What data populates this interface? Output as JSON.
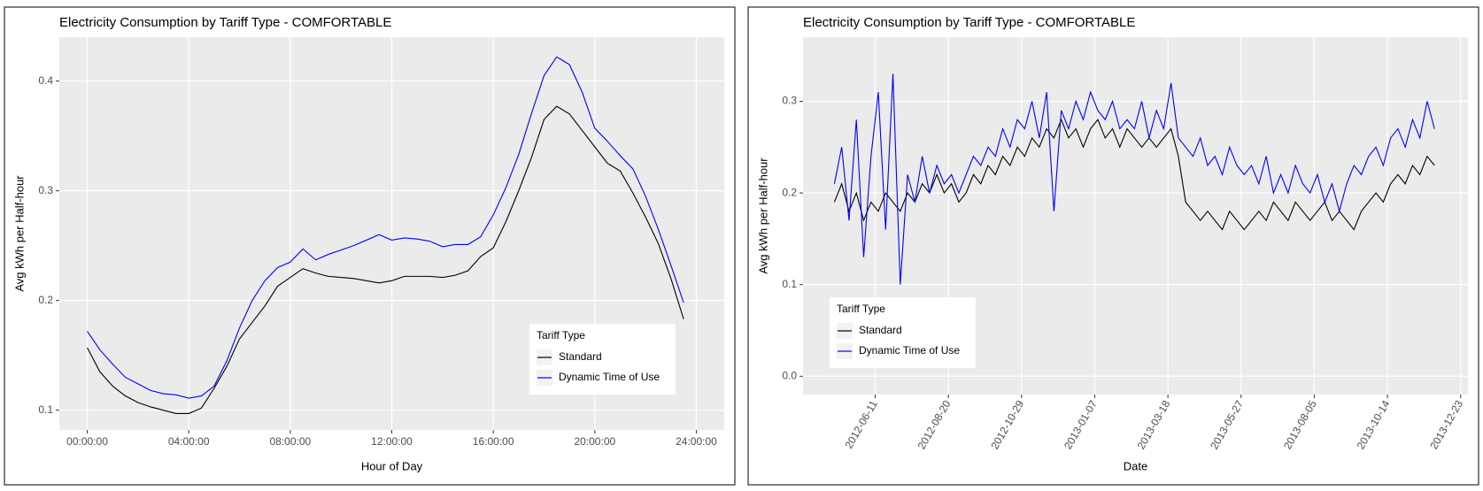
{
  "chart_data": [
    {
      "type": "line",
      "title": "Electricity Consumption by Tariff Type - COMFORTABLE",
      "x_label": "Hour of Day",
      "y_label": "Avg kWh per Half-hour",
      "x": [
        0,
        0.5,
        1,
        1.5,
        2,
        2.5,
        3,
        3.5,
        4,
        4.5,
        5,
        5.5,
        6,
        6.5,
        7,
        7.5,
        8,
        8.5,
        9,
        9.5,
        10,
        10.5,
        11,
        11.5,
        12,
        12.5,
        13,
        13.5,
        14,
        14.5,
        15,
        15.5,
        16,
        16.5,
        17,
        17.5,
        18,
        18.5,
        19,
        19.5,
        20,
        20.5,
        21,
        21.5,
        22,
        22.5,
        23,
        23.5
      ],
      "series": [
        {
          "name": "Standard",
          "color": "#000000",
          "values": [
            0.157,
            0.135,
            0.122,
            0.113,
            0.107,
            0.103,
            0.1,
            0.097,
            0.097,
            0.102,
            0.12,
            0.14,
            0.165,
            0.18,
            0.195,
            0.213,
            0.221,
            0.229,
            0.225,
            0.222,
            0.221,
            0.22,
            0.218,
            0.216,
            0.218,
            0.222,
            0.222,
            0.222,
            0.221,
            0.223,
            0.227,
            0.24,
            0.248,
            0.272,
            0.3,
            0.33,
            0.365,
            0.377,
            0.37,
            0.355,
            0.34,
            0.325,
            0.318,
            0.298,
            0.276,
            0.252,
            0.22,
            0.183
          ]
        },
        {
          "name": "Dynamic Time of Use",
          "color": "#0000ff",
          "values": [
            0.172,
            0.155,
            0.142,
            0.13,
            0.124,
            0.118,
            0.115,
            0.114,
            0.111,
            0.113,
            0.122,
            0.145,
            0.175,
            0.2,
            0.218,
            0.23,
            0.235,
            0.247,
            0.237,
            0.242,
            0.246,
            0.25,
            0.255,
            0.26,
            0.255,
            0.257,
            0.256,
            0.254,
            0.249,
            0.251,
            0.251,
            0.258,
            0.278,
            0.303,
            0.333,
            0.37,
            0.405,
            0.422,
            0.415,
            0.39,
            0.357,
            0.345,
            0.332,
            0.32,
            0.295,
            0.265,
            0.232,
            0.198
          ]
        }
      ],
      "xlim": [
        -1.1,
        25.1
      ],
      "xticks": [
        {
          "value": 0,
          "label": "00:00:00"
        },
        {
          "value": 4,
          "label": "04:00:00"
        },
        {
          "value": 8,
          "label": "08:00:00"
        },
        {
          "value": 12,
          "label": "12:00:00"
        },
        {
          "value": 16,
          "label": "16:00:00"
        },
        {
          "value": 20,
          "label": "20:00:00"
        },
        {
          "value": 24,
          "label": "24:00:00"
        }
      ],
      "ylim": [
        0.082,
        0.44
      ],
      "yticks": [
        0.1,
        0.2,
        0.3,
        0.4
      ],
      "grid": true,
      "legend_title": "Tariff Type",
      "legend_position": "bottom-right"
    },
    {
      "type": "line",
      "title": "Electricity Consumption by Tariff Type - COMFORTABLE",
      "x_label": "Date",
      "y_label": "Avg kWh per Half-hour",
      "x": [
        "2012-05-03",
        "2012-05-10",
        "2012-05-17",
        "2012-05-24",
        "2012-05-31",
        "2012-06-07",
        "2012-06-14",
        "2012-06-21",
        "2012-06-28",
        "2012-07-05",
        "2012-07-12",
        "2012-07-19",
        "2012-07-26",
        "2012-08-02",
        "2012-08-09",
        "2012-08-16",
        "2012-08-23",
        "2012-08-30",
        "2012-09-06",
        "2012-09-13",
        "2012-09-20",
        "2012-09-27",
        "2012-10-04",
        "2012-10-11",
        "2012-10-18",
        "2012-10-25",
        "2012-11-01",
        "2012-11-08",
        "2012-11-15",
        "2012-11-22",
        "2012-11-29",
        "2012-12-06",
        "2012-12-13",
        "2012-12-20",
        "2012-12-27",
        "2013-01-03",
        "2013-01-10",
        "2013-01-17",
        "2013-01-24",
        "2013-01-31",
        "2013-02-07",
        "2013-02-14",
        "2013-02-21",
        "2013-02-28",
        "2013-03-07",
        "2013-03-14",
        "2013-03-21",
        "2013-03-28",
        "2013-04-04",
        "2013-04-11",
        "2013-04-18",
        "2013-04-25",
        "2013-05-02",
        "2013-05-09",
        "2013-05-16",
        "2013-05-23",
        "2013-05-30",
        "2013-06-06",
        "2013-06-13",
        "2013-06-20",
        "2013-06-27",
        "2013-07-04",
        "2013-07-11",
        "2013-07-18",
        "2013-07-25",
        "2013-08-01",
        "2013-08-08",
        "2013-08-15",
        "2013-08-22",
        "2013-08-29",
        "2013-09-05",
        "2013-09-12",
        "2013-09-19",
        "2013-09-26",
        "2013-10-03",
        "2013-10-10",
        "2013-10-17",
        "2013-10-24",
        "2013-10-31",
        "2013-11-07",
        "2013-11-14",
        "2013-11-21",
        "2013-11-28"
      ],
      "series": [
        {
          "name": "Standard",
          "color": "#000000",
          "values": [
            0.19,
            0.21,
            0.18,
            0.2,
            0.17,
            0.19,
            0.18,
            0.2,
            0.19,
            0.18,
            0.2,
            0.19,
            0.21,
            0.2,
            0.22,
            0.2,
            0.21,
            0.19,
            0.2,
            0.22,
            0.21,
            0.23,
            0.22,
            0.24,
            0.23,
            0.25,
            0.24,
            0.26,
            0.25,
            0.27,
            0.26,
            0.28,
            0.26,
            0.27,
            0.25,
            0.27,
            0.28,
            0.26,
            0.27,
            0.25,
            0.27,
            0.26,
            0.25,
            0.26,
            0.25,
            0.26,
            0.27,
            0.24,
            0.19,
            0.18,
            0.17,
            0.18,
            0.17,
            0.16,
            0.18,
            0.17,
            0.16,
            0.17,
            0.18,
            0.17,
            0.19,
            0.18,
            0.17,
            0.19,
            0.18,
            0.17,
            0.18,
            0.19,
            0.17,
            0.18,
            0.17,
            0.16,
            0.18,
            0.19,
            0.2,
            0.19,
            0.21,
            0.22,
            0.21,
            0.23,
            0.22,
            0.24,
            0.23
          ]
        },
        {
          "name": "Dynamic Time of Use",
          "color": "#0000ff",
          "values": [
            0.21,
            0.25,
            0.17,
            0.28,
            0.13,
            0.24,
            0.31,
            0.16,
            0.33,
            0.1,
            0.22,
            0.19,
            0.24,
            0.2,
            0.23,
            0.21,
            0.22,
            0.2,
            0.22,
            0.24,
            0.23,
            0.25,
            0.24,
            0.27,
            0.25,
            0.28,
            0.27,
            0.3,
            0.26,
            0.31,
            0.18,
            0.29,
            0.27,
            0.3,
            0.28,
            0.31,
            0.29,
            0.28,
            0.3,
            0.27,
            0.28,
            0.27,
            0.3,
            0.26,
            0.29,
            0.27,
            0.32,
            0.26,
            0.25,
            0.24,
            0.26,
            0.23,
            0.24,
            0.22,
            0.25,
            0.23,
            0.22,
            0.23,
            0.21,
            0.24,
            0.2,
            0.22,
            0.2,
            0.23,
            0.21,
            0.2,
            0.22,
            0.19,
            0.21,
            0.18,
            0.21,
            0.23,
            0.22,
            0.24,
            0.25,
            0.23,
            0.26,
            0.27,
            0.25,
            0.28,
            0.26,
            0.3,
            0.27
          ]
        }
      ],
      "xlim": [
        "2012-04-03",
        "2013-12-30"
      ],
      "xticks": [
        "2012-06-11",
        "2012-08-20",
        "2012-10-29",
        "2013-01-07",
        "2013-03-18",
        "2013-05-27",
        "2013-08-05",
        "2013-10-14",
        "2013-12-23"
      ],
      "ylim": [
        -0.02,
        0.37
      ],
      "yticks": [
        {
          "value": 0,
          "label": "0.0"
        },
        0.1,
        0.2,
        0.3
      ],
      "grid": true,
      "legend_title": "Tariff Type",
      "legend_position": "bottom-left"
    }
  ]
}
